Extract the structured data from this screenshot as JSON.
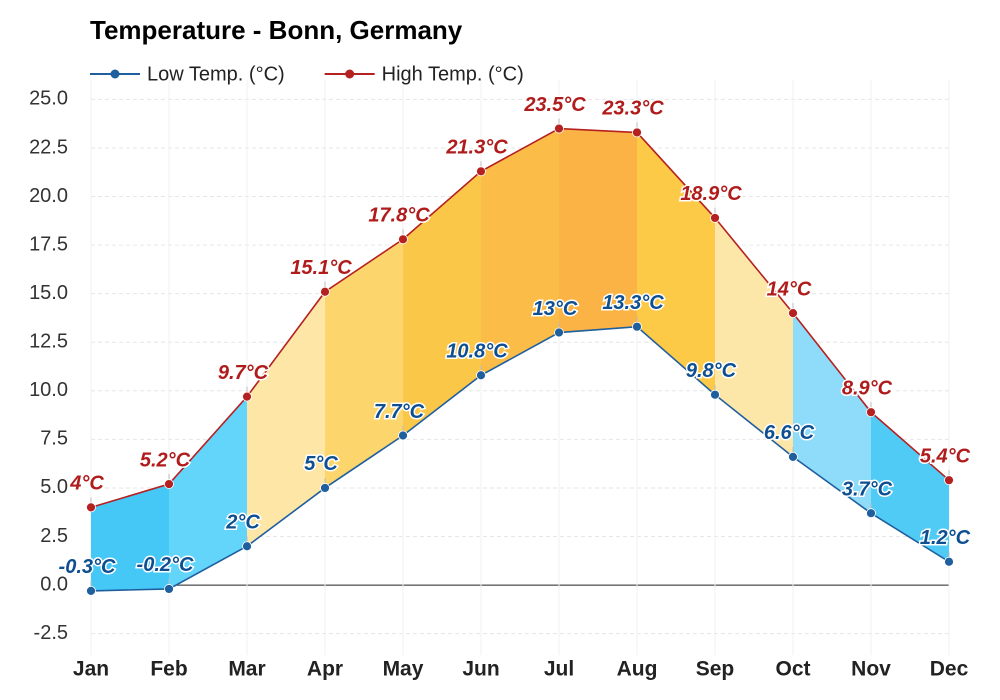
{
  "chart_data": {
    "type": "range-area",
    "title": "Temperature - Bonn, Germany",
    "categories": [
      "Jan",
      "Feb",
      "Mar",
      "Apr",
      "May",
      "Jun",
      "Jul",
      "Aug",
      "Sep",
      "Oct",
      "Nov",
      "Dec"
    ],
    "series": [
      {
        "name": "Low Temp. (°C)",
        "color": "#1f5f9e",
        "label_color": "#0d4f91",
        "values": [
          -0.3,
          -0.2,
          2,
          5,
          7.7,
          10.8,
          13,
          13.3,
          9.8,
          6.6,
          3.7,
          1.2
        ],
        "value_labels": [
          "-0.3°C",
          "-0.2°C",
          "2°C",
          "5°C",
          "7.7°C",
          "10.8°C",
          "13°C",
          "13.3°C",
          "9.8°C",
          "6.6°C",
          "3.7°C",
          "1.2°C"
        ]
      },
      {
        "name": "High Temp. (°C)",
        "color": "#b52020",
        "label_color": "#b01c1c",
        "values": [
          4,
          5.2,
          9.7,
          15.1,
          17.8,
          21.3,
          23.5,
          23.3,
          18.9,
          14,
          8.9,
          5.4
        ],
        "value_labels": [
          "4°C",
          "5.2°C",
          "9.7°C",
          "15.1°C",
          "17.8°C",
          "21.3°C",
          "23.5°C",
          "23.3°C",
          "18.9°C",
          "14°C",
          "8.9°C",
          "5.4°C"
        ]
      }
    ],
    "fill_colors": [
      "#45c8f6",
      "#63d5fa",
      "#fde6a6",
      "#fcd56c",
      "#fbc748",
      "#fbbd48",
      "#fbb345",
      "#fdca48",
      "#fde7a8",
      "#8edcfa",
      "#4fcbf5"
    ],
    "ylim": [
      -3.6,
      26
    ],
    "yticks": [
      {
        "value": -2.5,
        "label": "-2.5"
      },
      {
        "value": 0,
        "label": "0.0"
      },
      {
        "value": 2.5,
        "label": "2.5"
      },
      {
        "value": 5,
        "label": "5.0"
      },
      {
        "value": 7.5,
        "label": "7.5"
      },
      {
        "value": 10,
        "label": "10.0"
      },
      {
        "value": 12.5,
        "label": "12.5"
      },
      {
        "value": 15,
        "label": "15.0"
      },
      {
        "value": 17.5,
        "label": "17.5"
      },
      {
        "value": 20,
        "label": "20.0"
      },
      {
        "value": 22.5,
        "label": "22.5"
      },
      {
        "value": 25,
        "label": "25.0"
      }
    ],
    "grid": true,
    "legend": "top-left"
  }
}
